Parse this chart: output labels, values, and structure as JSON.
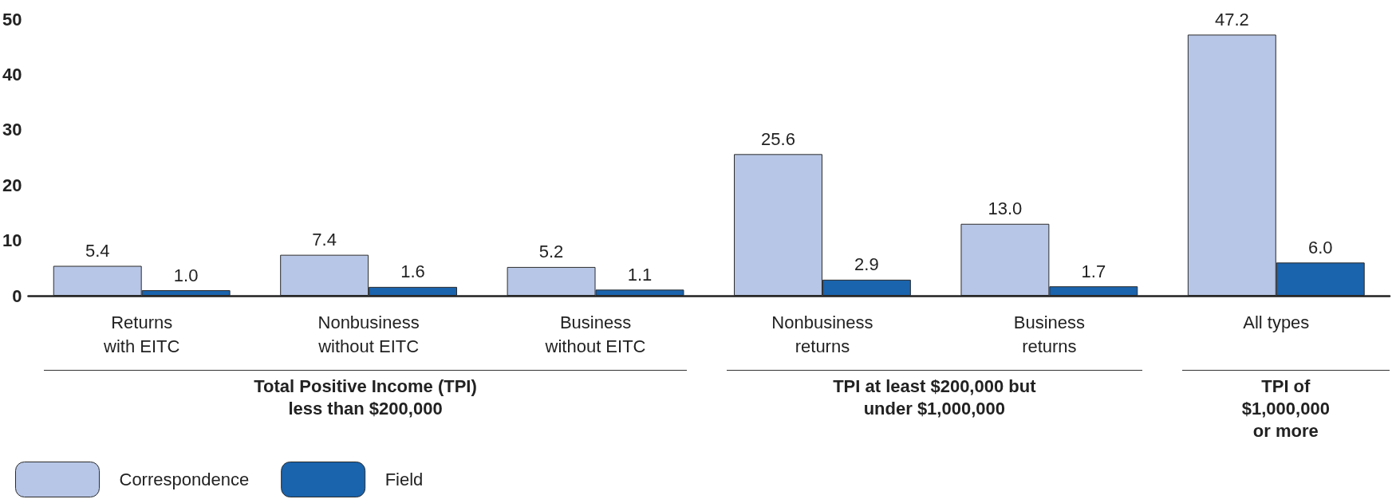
{
  "chart_data": {
    "type": "bar",
    "categories": [
      "Returns\nwith EITC",
      "Nonbusiness\nwithout EITC",
      "Business\nwithout EITC",
      "Nonbusiness\nreturns",
      "Business\nreturns",
      "All types"
    ],
    "series": [
      {
        "name": "Correspondence",
        "color": "#b7c6e6",
        "values": [
          5.4,
          7.4,
          5.2,
          25.6,
          13.0,
          47.2
        ],
        "value_labels": [
          "5.4",
          "7.4",
          "5.2",
          "25.6",
          "13.0",
          "47.2"
        ]
      },
      {
        "name": "Field",
        "color": "#1a63ad",
        "values": [
          1.0,
          1.6,
          1.1,
          2.9,
          1.7,
          6.0
        ],
        "value_labels": [
          "1.0",
          "1.6",
          "1.1",
          "2.9",
          "1.7",
          "6.0"
        ]
      }
    ],
    "ylim": [
      0,
      50
    ],
    "yticks": [
      0,
      10,
      20,
      30,
      40,
      50
    ],
    "grid": false,
    "legend": "bottom left",
    "annotations": [
      "Total Positive Income (TPI)\nless than $200,000",
      "TPI at least $200,000 but\nunder $1,000,000",
      "TPI of\n$1,000,000\nor more"
    ]
  }
}
